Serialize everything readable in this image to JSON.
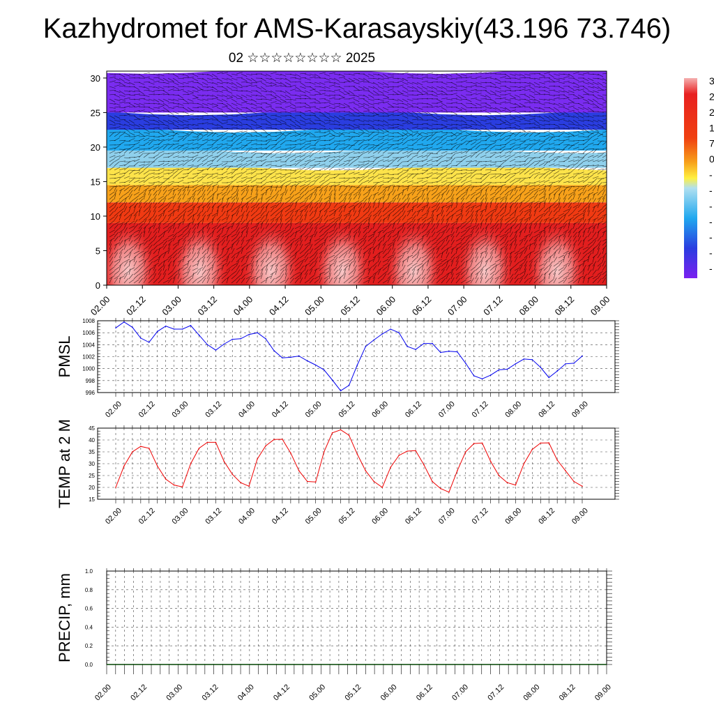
{
  "title": "Kazhydromet for AMS-Karasayskiy(43.196 73.746)",
  "subtitle": "02 ☆☆☆☆☆☆☆☆ 2025",
  "colors": {
    "pmsl_line": "#0000ee",
    "temp_line": "#ee0000",
    "precip_line": "#004400"
  },
  "colorbar_labels": [
    "3",
    "2",
    "2",
    "1",
    "7",
    "0",
    "-",
    "-",
    "-",
    "-",
    "-",
    "-",
    "-"
  ],
  "chart_data": [
    {
      "type": "heatmap",
      "name_ref": "wind-temperature cross-section",
      "y_ticks": [
        "0",
        "5",
        "10",
        "15",
        "20",
        "25",
        "30"
      ],
      "ylim": [
        0,
        31
      ],
      "x_ticks": [
        "02.00",
        "02.12",
        "03.00",
        "03.12",
        "04.00",
        "04.12",
        "05.00",
        "05.12",
        "06.00",
        "06.12",
        "07.00",
        "07.12",
        "08.00",
        "08.12",
        "09.00"
      ],
      "bands": [
        {
          "from": 0,
          "to": 9,
          "color": "#e21e1e"
        },
        {
          "from": 9,
          "to": 12,
          "color": "#f03a12"
        },
        {
          "from": 12,
          "to": 14.5,
          "color": "#f7a11a"
        },
        {
          "from": 14.5,
          "to": 17,
          "color": "#fde34a"
        },
        {
          "from": 17,
          "to": 19.5,
          "color": "#8fd0ec"
        },
        {
          "from": 19.5,
          "to": 22.5,
          "color": "#20a8ef"
        },
        {
          "from": 22.5,
          "to": 25,
          "color": "#2a3de0"
        },
        {
          "from": 25,
          "to": 31,
          "color": "#7a2cf0"
        }
      ],
      "warm_blobs_x": [
        0.3,
        1.3,
        2.3,
        3.3,
        4.3,
        5.3,
        6.3
      ]
    },
    {
      "type": "line",
      "ylabel": "PMSL",
      "ylim": [
        996,
        1008
      ],
      "y_ticks": [
        "996",
        "998",
        "1000",
        "1002",
        "1004",
        "1006",
        "1008"
      ],
      "x_ticks": [
        "02.00",
        "02.12",
        "03.00",
        "03.12",
        "04.00",
        "04.12",
        "05.00",
        "05.12",
        "06.00",
        "06.12",
        "07.00",
        "07.12",
        "08.00",
        "08.12",
        "09.00"
      ],
      "grid": true,
      "values": [
        1006.8,
        1007.8,
        1006.9,
        1005.1,
        1004.4,
        1006.2,
        1007.1,
        1006.6,
        1006.6,
        1007.2,
        1005.6,
        1004.0,
        1003.1,
        1004.1,
        1004.9,
        1005.0,
        1005.7,
        1006.0,
        1005.0,
        1003.0,
        1001.8,
        1001.9,
        1002.1,
        1001.3,
        1000.6,
        999.8,
        998.1,
        996.3,
        997.2,
        1000.6,
        1003.7,
        1004.8,
        1005.8,
        1006.6,
        1006.0,
        1003.7,
        1003.2,
        1004.2,
        1004.2,
        1002.7,
        1002.9,
        1002.8,
        1000.9,
        998.8,
        998.3,
        998.9,
        999.8,
        999.9,
        1000.8,
        1001.6,
        1001.5,
        1000.2,
        998.5,
        999.6,
        1000.8,
        1000.9,
        1002.1
      ]
    },
    {
      "type": "line",
      "ylabel": "TEMP at 2 M",
      "ylim": [
        15,
        45
      ],
      "y_ticks": [
        "15",
        "20",
        "25",
        "30",
        "35",
        "40",
        "45"
      ],
      "x_ticks": [
        "02.00",
        "02.12",
        "03.00",
        "03.12",
        "04.00",
        "04.12",
        "05.00",
        "05.12",
        "06.00",
        "06.12",
        "07.00",
        "07.12",
        "08.00",
        "08.12",
        "09.00"
      ],
      "grid": true,
      "values": [
        20.0,
        29.0,
        35.0,
        37.3,
        36.5,
        29.0,
        23.5,
        21.0,
        20.2,
        30.0,
        36.5,
        39.0,
        39.0,
        31.0,
        25.5,
        22.0,
        20.5,
        32.0,
        37.5,
        40.2,
        40.3,
        34.5,
        27.0,
        22.5,
        22.3,
        35.0,
        43.0,
        44.3,
        42.0,
        34.0,
        27.0,
        22.5,
        20.0,
        28.5,
        33.5,
        35.3,
        35.5,
        29.5,
        22.5,
        19.5,
        18.0,
        27.0,
        35.0,
        38.5,
        38.7,
        31.0,
        25.0,
        22.0,
        21.0,
        30.0,
        36.0,
        38.7,
        38.8,
        31.5,
        27.0,
        22.5,
        20.5
      ]
    },
    {
      "type": "line",
      "ylabel": "PRECIP, mm",
      "ylim": [
        0,
        1
      ],
      "y_ticks": [
        "0.0",
        "0.2",
        "0.4",
        "0.6",
        "0.8",
        "1.0"
      ],
      "x_ticks": [
        "02.00",
        "02.12",
        "03.00",
        "03.12",
        "04.00",
        "04.12",
        "05.00",
        "05.12",
        "06.00",
        "06.12",
        "07.00",
        "07.12",
        "08.00",
        "08.12",
        "09.00"
      ],
      "grid": true,
      "values": [
        0,
        0,
        0,
        0,
        0,
        0,
        0,
        0,
        0,
        0,
        0,
        0,
        0,
        0,
        0,
        0,
        0,
        0,
        0,
        0,
        0,
        0,
        0,
        0,
        0,
        0,
        0,
        0,
        0,
        0,
        0,
        0,
        0,
        0,
        0,
        0,
        0,
        0,
        0,
        0,
        0,
        0,
        0,
        0,
        0,
        0,
        0,
        0,
        0,
        0,
        0,
        0,
        0,
        0,
        0,
        0,
        0
      ]
    }
  ]
}
